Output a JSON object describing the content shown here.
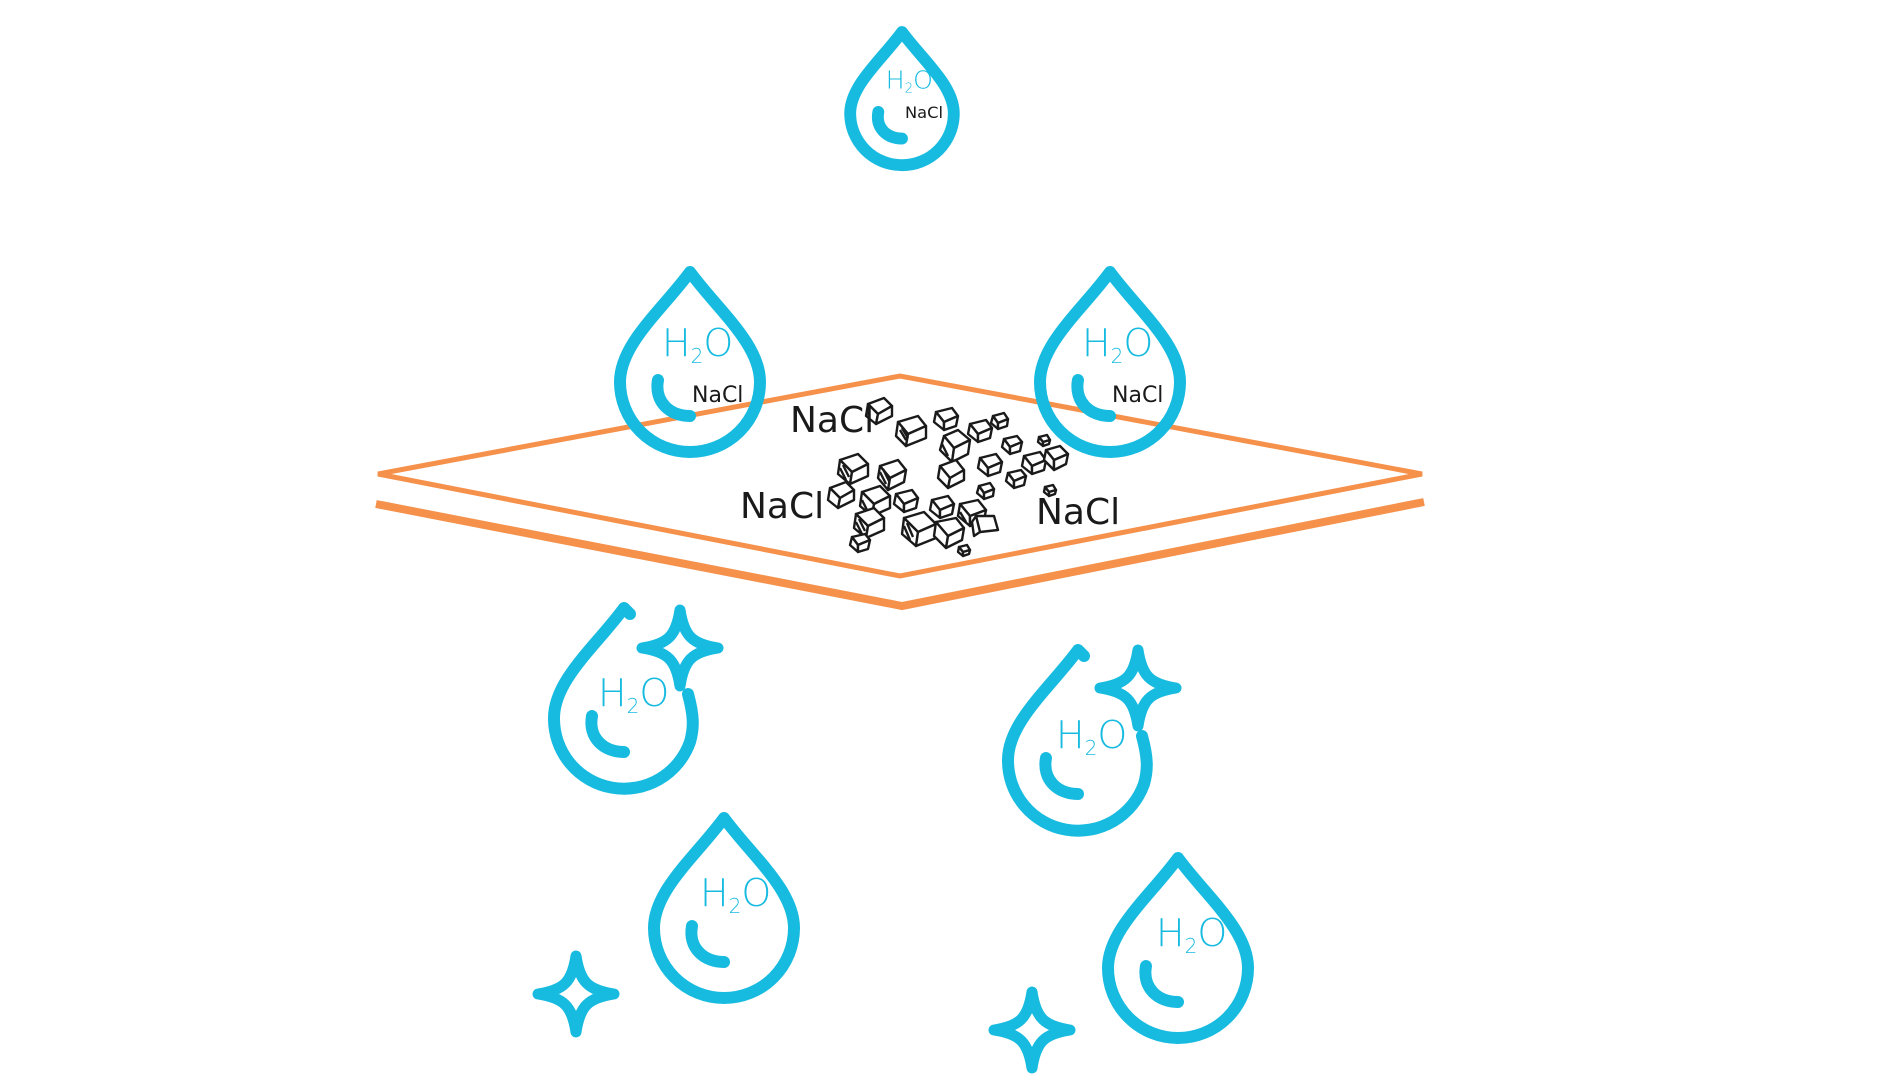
{
  "diagram": {
    "labels": {
      "water": "H2O",
      "water_main": "H",
      "water_sub": "2",
      "water_tail": "O",
      "salt": "NaCl"
    },
    "colors": {
      "drop": "#17BBE0",
      "filter": "#F5914B",
      "salt_ink": "#1a1a1a",
      "background": "#ffffff"
    },
    "icons": {
      "drop": "water-drop-icon",
      "sparkle": "sparkle-icon",
      "crystal": "salt-crystal-icon"
    }
  }
}
